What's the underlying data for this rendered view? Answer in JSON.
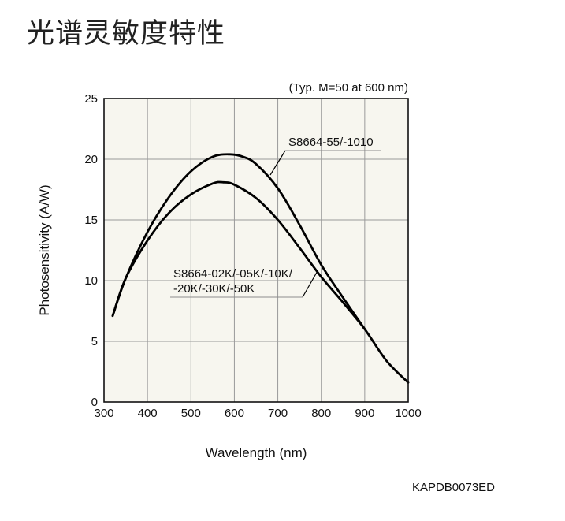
{
  "page": {
    "title": "光谱灵敏度特性",
    "code": "KAPDB0073ED"
  },
  "chart_data": {
    "type": "line",
    "condition_note": "(Typ. M=50 at 600 nm)",
    "xlabel": "Wavelength (nm)",
    "ylabel": "Photosensitivity (A/W)",
    "xlim": [
      300,
      1000
    ],
    "ylim": [
      0,
      25
    ],
    "xticks": [
      "300",
      "400",
      "500",
      "600",
      "700",
      "800",
      "900",
      "1000"
    ],
    "yticks": [
      "0",
      "5",
      "10",
      "15",
      "20",
      "25"
    ],
    "grid": true,
    "series": [
      {
        "name": "S8664-55/-1010",
        "label_lines": [
          "S8664-55/-1010"
        ],
        "x": [
          320,
          350,
          400,
          450,
          500,
          550,
          590,
          620,
          650,
          700,
          750,
          800,
          850,
          900
        ],
        "y": [
          7.1,
          10.2,
          14.0,
          16.9,
          19.0,
          20.2,
          20.4,
          20.2,
          19.6,
          17.6,
          14.6,
          11.3,
          8.6,
          6.0
        ]
      },
      {
        "name": "S8664-02K/-05K/-10K/-20K/-30K/-50K",
        "label_lines": [
          "S8664-02K/-05K/-10K/",
          "-20K/-30K/-50K"
        ],
        "x": [
          320,
          350,
          400,
          450,
          500,
          550,
          575,
          600,
          650,
          700,
          750,
          800,
          850,
          900,
          950,
          1000
        ],
        "y": [
          7.1,
          10.2,
          13.3,
          15.6,
          17.1,
          18.0,
          18.1,
          17.9,
          16.8,
          15.0,
          12.7,
          10.3,
          8.2,
          6.0,
          3.4,
          1.6
        ]
      }
    ]
  }
}
